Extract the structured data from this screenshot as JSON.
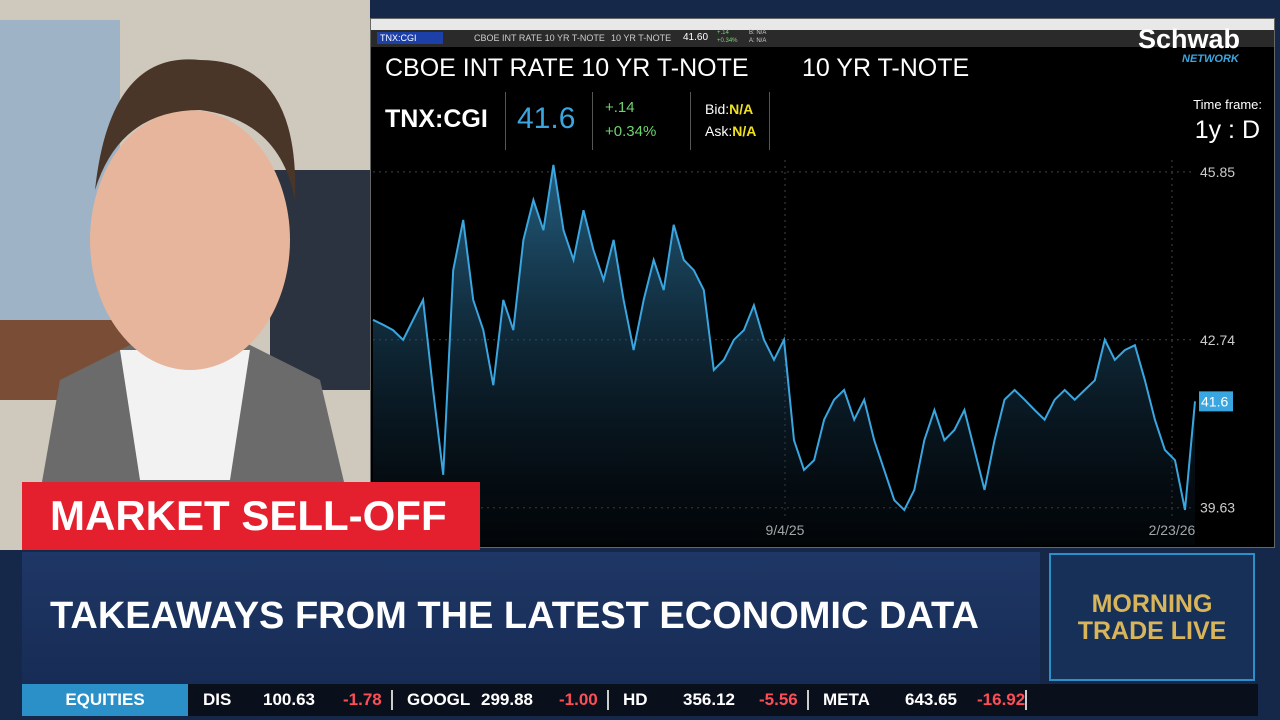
{
  "window": {
    "toolbar": {
      "symbol": "TNX:CGI",
      "description": "CBOE INT RATE 10 YR T-NOTE",
      "short_name": "10 YR T-NOTE",
      "last": "41.60",
      "change": "+.14",
      "change_pct": "+0.34%",
      "bid": "B: N/A",
      "ask": "A: N/A"
    },
    "header": {
      "description": "CBOE INT RATE 10 YR T-NOTE",
      "short_name": "10 YR T-NOTE",
      "symbol": "TNX:CGI",
      "last": "41.6",
      "change": "+.14",
      "change_pct": "+0.34%",
      "bid_label": "Bid:",
      "bid": "N/A",
      "ask_label": "Ask:",
      "ask": "N/A",
      "timeframe_label": "Time frame:",
      "timeframe": "1y : D"
    }
  },
  "chart_data": {
    "type": "line",
    "color": "#3aa6e0",
    "x": [
      0,
      1,
      2,
      3,
      4,
      5,
      6,
      7,
      8,
      9,
      10,
      11,
      12,
      13,
      14,
      15,
      16,
      17,
      18,
      19,
      20,
      21,
      22,
      23,
      24,
      25,
      26,
      27,
      28,
      29,
      30,
      31,
      32,
      33,
      34,
      35,
      36,
      37,
      38,
      39,
      40,
      41,
      42,
      43,
      44,
      45,
      46,
      47,
      48,
      49,
      50,
      51,
      52,
      53,
      54,
      55,
      56,
      57,
      58,
      59,
      60,
      61,
      62,
      63,
      64,
      65,
      66,
      67,
      68,
      69,
      70,
      71,
      72,
      73,
      74,
      75,
      76,
      77,
      78,
      79,
      80,
      81,
      82
    ],
    "values": [
      43.11,
      43.02,
      42.92,
      42.74,
      43.11,
      43.48,
      41.81,
      40.24,
      44.03,
      44.96,
      43.48,
      42.92,
      41.9,
      43.48,
      42.92,
      44.59,
      45.33,
      44.77,
      45.98,
      44.77,
      44.22,
      45.14,
      44.4,
      43.85,
      44.59,
      43.48,
      42.55,
      43.48,
      44.22,
      43.66,
      44.87,
      44.22,
      44.03,
      43.66,
      42.18,
      42.37,
      42.74,
      42.92,
      43.38,
      42.74,
      42.37,
      42.74,
      40.88,
      40.33,
      40.51,
      41.26,
      41.63,
      41.81,
      41.26,
      41.63,
      40.88,
      40.33,
      39.77,
      39.59,
      39.96,
      40.88,
      41.44,
      40.88,
      41.07,
      41.44,
      40.7,
      39.96,
      40.88,
      41.63,
      41.81,
      41.63,
      41.44,
      41.26,
      41.63,
      41.81,
      41.63,
      41.81,
      41.99,
      42.74,
      42.37,
      42.55,
      42.64,
      41.99,
      41.26,
      40.7,
      40.51,
      39.59,
      41.6
    ],
    "xlim": [
      0,
      82
    ],
    "xticks": [
      {
        "value": 41.1,
        "label": "9/4/25"
      },
      {
        "value": 79.7,
        "label": "2/23/26"
      }
    ],
    "ylim": [
      38.94,
      46.07
    ],
    "yticks": [
      45.85,
      42.74,
      39.63
    ]
  },
  "logo": {
    "brand": "Schwab",
    "sub": "NETWORK"
  },
  "lower_third": {
    "tag": "MARKET SELL-OFF",
    "headline": "TAKEAWAYS FROM THE LATEST ECONOMIC DATA",
    "show_line1": "MORNING",
    "show_line2": "TRADE LIVE"
  },
  "ticker": {
    "section": "EQUITIES",
    "items": [
      {
        "symbol": "DIS",
        "price": "100.63",
        "change": "-1.78"
      },
      {
        "symbol": "GOOGL",
        "price": "299.88",
        "change": "-1.00"
      },
      {
        "symbol": "HD",
        "price": "356.12",
        "change": "-5.56"
      },
      {
        "symbol": "META",
        "price": "643.65",
        "change": "-16.92"
      }
    ]
  }
}
